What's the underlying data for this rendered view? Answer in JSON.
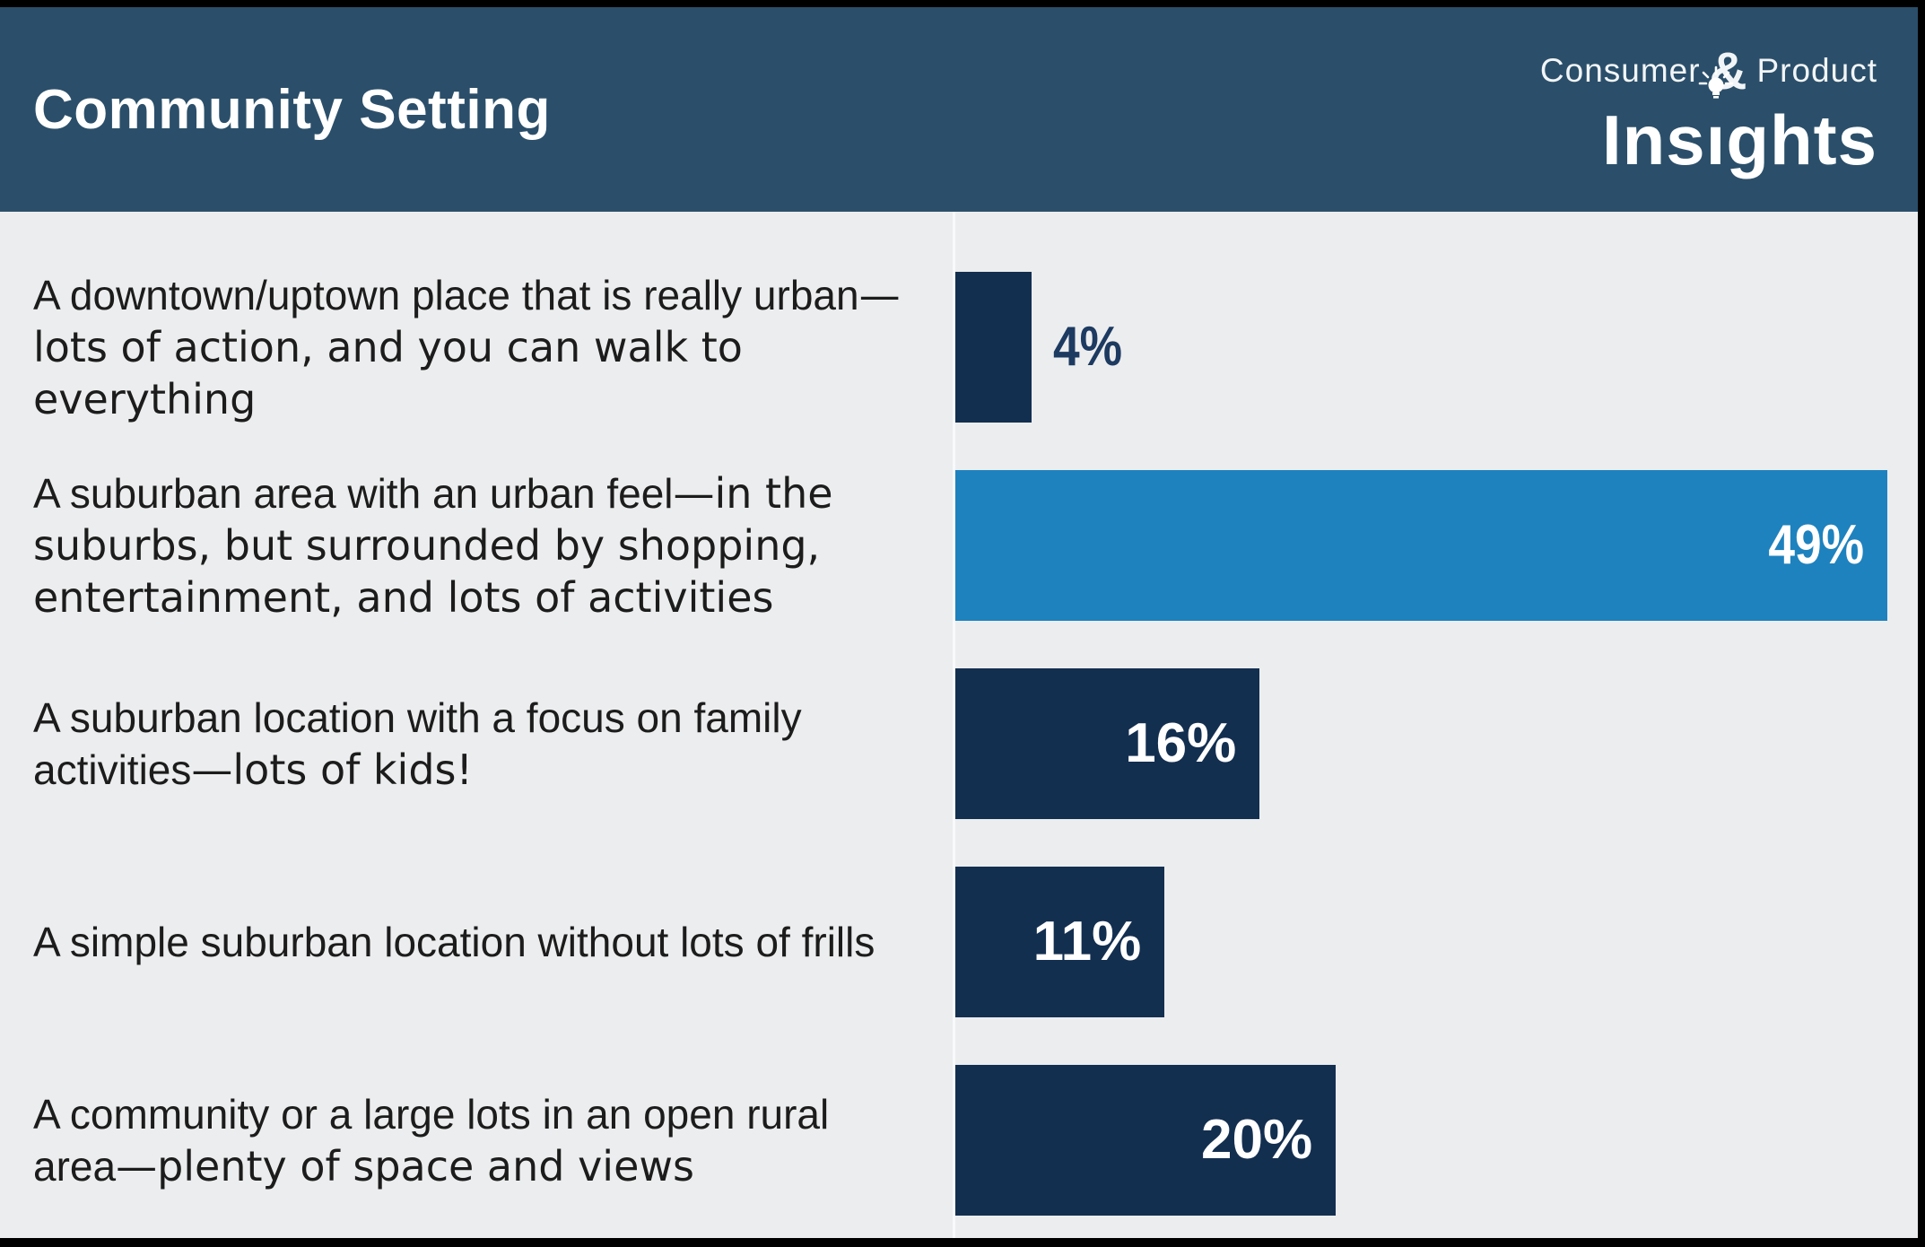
{
  "header": {
    "title": "Community Setting",
    "logo": {
      "line1_left": "Consumer",
      "line1_amp": "&",
      "line1_right": "Product",
      "line2_word": "Insights",
      "line2_pre": "Ins",
      "line2_dotless_i": "ı",
      "line2_post": "ghts",
      "icon": "lightbulb-icon"
    }
  },
  "colors": {
    "header_background": "#2B4F6A",
    "slide_background": "#ECEDEE",
    "bar_navy": "#132F50",
    "bar_highlight_blue": "#1E82BE",
    "value_text_navy": "#1D3A61",
    "value_text_white": "#FFFFFF",
    "label_text": "#1C1C1C",
    "frame_black": "#000000"
  },
  "chart_data": {
    "type": "bar",
    "orientation": "horizontal",
    "unit": "%",
    "grid": false,
    "legend": false,
    "xlim": [
      0,
      50.6
    ],
    "categories": [
      "A downtown/uptown place that is really urban—lots of action, and you can walk to everything",
      "A suburban area with an urban feel—in the suburbs, but surrounded by shopping, entertainment, and lots of activities",
      "A suburban location with a focus on family activities—lots of kids!",
      "A simple suburban location without lots of frills",
      "A community or a large lots in an open rural area—plenty of space and views"
    ],
    "values": [
      4,
      49,
      16,
      11,
      20
    ],
    "rows": [
      {
        "label_main": "A downtown/uptown place that is really urban",
        "label_emph": "—lots of action, and you can walk to everything",
        "value": 4,
        "value_label": "4%",
        "color": "#132F50",
        "value_position": "outside"
      },
      {
        "label_main": "A suburban area with an urban feel",
        "label_emph": "—in the suburbs, but surrounded by shopping, entertainment, and lots of activities",
        "value": 49,
        "value_label": "49%",
        "color": "#1E82BE",
        "value_position": "inside"
      },
      {
        "label_main": "A suburban location with a focus on family activities",
        "label_emph": "—lots of kids!",
        "value": 16,
        "value_label": "16%",
        "color": "#132F50",
        "value_position": "inside"
      },
      {
        "label_main": "A simple suburban location without lots of frills",
        "label_emph": "",
        "value": 11,
        "value_label": "11%",
        "color": "#132F50",
        "value_position": "inside"
      },
      {
        "label_main": "A community or a large lots in an open rural area",
        "label_emph": "—plenty of space and views",
        "value": 20,
        "value_label": "20%",
        "color": "#132F50",
        "value_position": "inside"
      }
    ]
  }
}
